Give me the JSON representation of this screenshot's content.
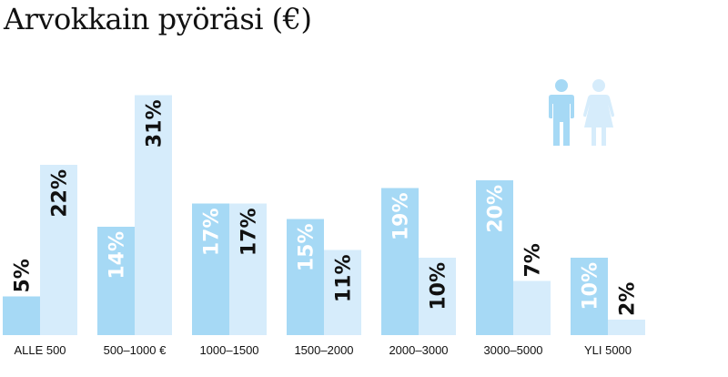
{
  "title": "Arvokkain pyöräsi (€)",
  "colors": {
    "men": "#a6d9f5",
    "women": "#d6ecfb",
    "label_light": "#ffffff",
    "label_dark": "#111111"
  },
  "legend": [
    {
      "icon": "man-icon",
      "series": "men"
    },
    {
      "icon": "woman-icon",
      "series": "women"
    }
  ],
  "chart_data": {
    "type": "bar",
    "title": "Arvokkain pyöräsi (€)",
    "categories": [
      "ALLE 500",
      "500–1000 €",
      "1000–1500",
      "1500–2000",
      "2000–3000",
      "3000–5000",
      "YLI 5000"
    ],
    "series": [
      {
        "values": [
          5,
          14,
          17,
          15,
          19,
          20,
          10
        ],
        "labels": [
          "5%",
          "14%",
          "17%",
          "15%",
          "19%",
          "20%",
          "10%"
        ],
        "color": "#a6d9f5"
      },
      {
        "values": [
          22,
          31,
          17,
          11,
          10,
          7,
          2
        ],
        "labels": [
          "22%",
          "31%",
          "17%",
          "11%",
          "10%",
          "7%",
          "2%"
        ],
        "color": "#d6ecfb"
      }
    ],
    "unit": "%",
    "legend": "top-right, icons (man, woman)",
    "grid": false
  }
}
